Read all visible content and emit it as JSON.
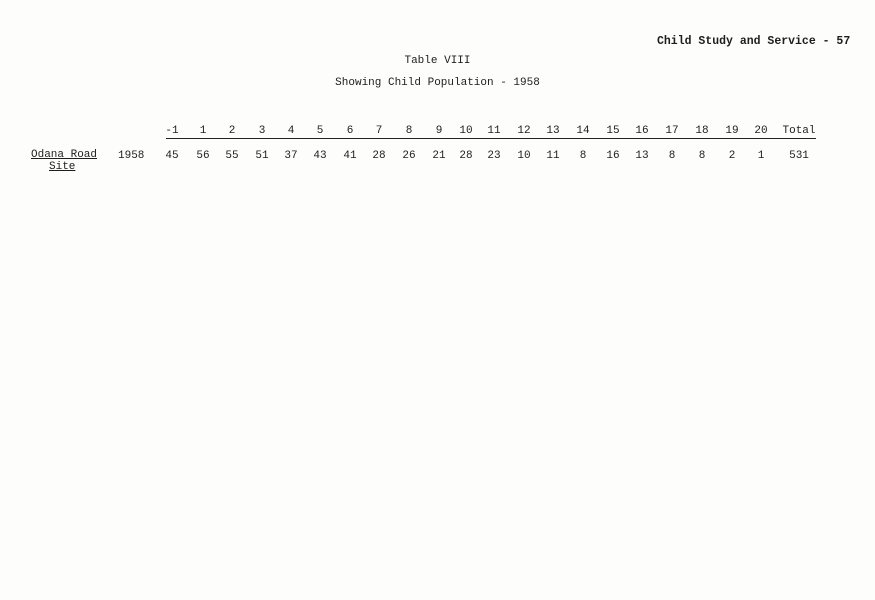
{
  "running_head": "Child Study and Service - 57",
  "title": "Table VIII",
  "subtitle": "Showing Child Population - 1958",
  "table": {
    "columns": [
      "-1",
      "1",
      "2",
      "3",
      "4",
      "5",
      "6",
      "7",
      "8",
      "9",
      "10",
      "11",
      "12",
      "13",
      "14",
      "15",
      "16",
      "17",
      "18",
      "19",
      "20",
      "Total"
    ],
    "rows": [
      {
        "label_line1": "Odana Road",
        "label_line2": "Site",
        "year": "1958",
        "values": [
          "45",
          "56",
          "55",
          "51",
          "37",
          "43",
          "41",
          "28",
          "26",
          "21",
          "28",
          "23",
          "10",
          "11",
          "8",
          "16",
          "13",
          "8",
          "8",
          "2",
          "1",
          "531"
        ]
      }
    ]
  }
}
